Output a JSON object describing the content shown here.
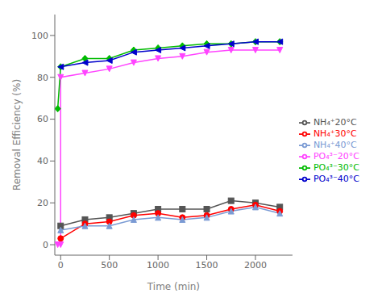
{
  "chart_data": {
    "type": "line",
    "xlabel": "Time (min)",
    "ylabel": "Removal Efficiency (%)",
    "xlim": [
      -60,
      2380
    ],
    "xticks": [
      0,
      500,
      1000,
      1500,
      2000
    ],
    "ylim": [
      -5,
      110
    ],
    "yticks": [
      0,
      20,
      40,
      60,
      80,
      100
    ],
    "grid": false,
    "legend": "right",
    "series": [
      {
        "name": "NH₄⁺20°C",
        "color": "#555555",
        "marker": "square",
        "x": [
          0,
          250,
          500,
          750,
          1000,
          1250,
          1500,
          1750,
          2000,
          2250
        ],
        "values": [
          9,
          12,
          13,
          15,
          17,
          17,
          17,
          21,
          20,
          18
        ]
      },
      {
        "name": "NH₄⁺30°C",
        "color": "#ff0000",
        "marker": "circle",
        "x": [
          0,
          250,
          500,
          750,
          1000,
          1250,
          1500,
          1750,
          2000,
          2250
        ],
        "values": [
          3,
          10,
          11,
          14,
          15,
          13,
          14,
          17,
          19,
          16
        ]
      },
      {
        "name": "NH₄⁺40°C",
        "color": "#7b9bd4",
        "marker": "triangle-up",
        "x": [
          0,
          250,
          500,
          750,
          1000,
          1250,
          1500,
          1750,
          2000,
          2250
        ],
        "values": [
          7,
          9,
          9,
          12,
          13,
          12,
          13,
          16,
          18,
          15
        ]
      },
      {
        "name": "PO₄³⁻20°C",
        "color": "#ff44ff",
        "marker": "triangle-down",
        "x": [
          -30,
          0,
          0,
          250,
          500,
          750,
          1000,
          1250,
          1500,
          1750,
          2000,
          2250
        ],
        "values": [
          0,
          0,
          80,
          82,
          84,
          87,
          89,
          90,
          92,
          93,
          93,
          93
        ]
      },
      {
        "name": "PO₄³⁻30°C",
        "color": "#00bb00",
        "marker": "diamond",
        "x": [
          -30,
          0,
          250,
          500,
          750,
          1000,
          1250,
          1500,
          1750,
          2000,
          2250
        ],
        "values": [
          65,
          85,
          89,
          89,
          93,
          94,
          95,
          96,
          96,
          97,
          97
        ]
      },
      {
        "name": "PO₄³⁻40°C",
        "color": "#0000cc",
        "marker": "triangle-left",
        "x": [
          0,
          250,
          500,
          750,
          1000,
          1250,
          1500,
          1750,
          2000,
          2250
        ],
        "values": [
          85,
          87,
          88,
          92,
          93,
          94,
          95,
          96,
          97,
          97
        ]
      }
    ]
  }
}
